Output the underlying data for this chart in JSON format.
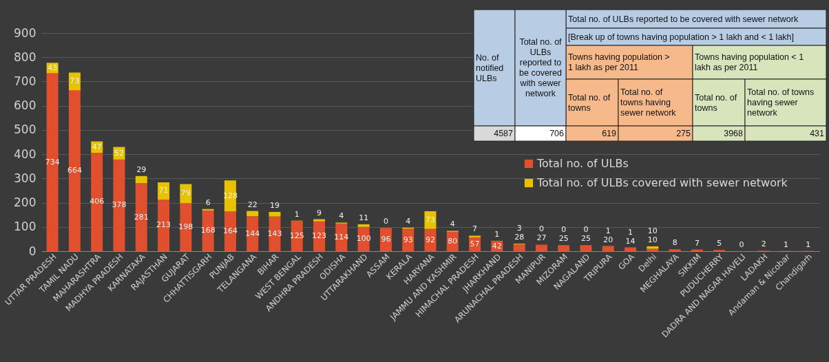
{
  "chart_data": {
    "type": "bar",
    "stacked": true,
    "categories": [
      "UTTAR PRADESH",
      "TAMIL NADU",
      "MAHARASHTRA",
      "MADHYA PRADESH",
      "KARNATAKA",
      "RAJASTHAN",
      "GUJARAT",
      "CHHATTISGARH",
      "PUNJAB",
      "TELANGANA",
      "BIHAR",
      "WEST BENGAL",
      "ANDHRA PRADESH",
      "ODISHA",
      "UTTARAKHAND",
      "ASSAM",
      "KERALA",
      "HARYANA",
      "JAMMU AND KASHMIR",
      "HIMACHAL PRADESH",
      "JHARKHAND",
      "ARUNACHAL PRADESH",
      "MANIPUR",
      "MIZORAM",
      "NAGALAND",
      "TRIPURA",
      "GOA",
      "Delhi",
      "MEGHALAYA",
      "SIKKIM",
      "PUDUCHERRY",
      "DADRA AND NAGAR HAVELI",
      "LADAKH",
      "Andaman & Nicobar",
      "Chandigarh"
    ],
    "series": [
      {
        "name": "Total no. of ULBs",
        "color": "#e0502e",
        "values": [
          734,
          664,
          406,
          378,
          281,
          213,
          198,
          168,
          164,
          144,
          143,
          125,
          123,
          114,
          100,
          96,
          93,
          92,
          80,
          57,
          42,
          28,
          27,
          25,
          25,
          20,
          14,
          10,
          8,
          7,
          5,
          0,
          2,
          1,
          1
        ]
      },
      {
        "name": "Total no. of ULBs  covered with sewer network",
        "color": "#e6c200",
        "values": [
          43,
          73,
          47,
          52,
          29,
          71,
          79,
          6,
          128,
          22,
          19,
          1,
          9,
          4,
          11,
          0,
          4,
          73,
          4,
          7,
          1,
          3,
          0,
          0,
          0,
          1,
          1,
          10,
          null,
          null,
          null,
          null,
          null,
          null,
          null
        ]
      }
    ],
    "ylim": [
      0,
      900
    ],
    "yticks": [
      0,
      100,
      200,
      300,
      400,
      500,
      600,
      700,
      800,
      900
    ],
    "grid": "y",
    "legend": "right",
    "data_labels": true,
    "annotations": [
      "No. of notified ULBs",
      "Total no. of ULBs reported to be covered with sewer network",
      "Total no. of ULBs reported to be covered with sewer network",
      "[Break up of towns having population > 1 lakh and < 1 lakh]",
      "Towns having population > 1 lakh as per 2011",
      "Towns  having population < 1 lakh as per 2011",
      "Total no. of towns",
      "Total no. of towns having sewer network",
      "Total no. of towns",
      "Total no. of towns having sewer network",
      "4587",
      "706",
      "619",
      "275",
      "3968",
      "431"
    ]
  }
}
